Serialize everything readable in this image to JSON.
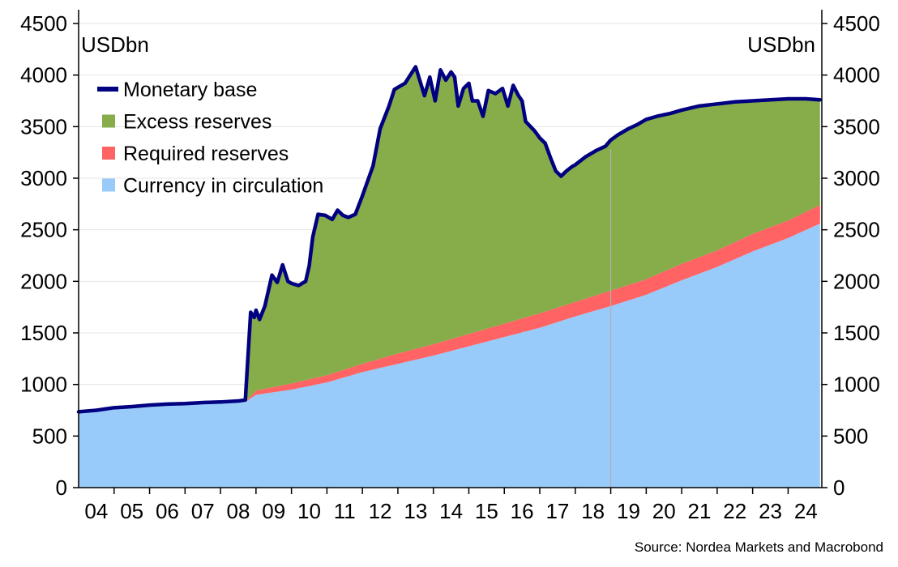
{
  "source": "Source: Nordea Markets and Macrobond",
  "chart_data": {
    "type": "area",
    "left_unit": "USDbn",
    "right_unit": "USDbn",
    "ylim": [
      0,
      4500
    ],
    "yticks": [
      0,
      500,
      1000,
      1500,
      2000,
      2500,
      3000,
      3500,
      4000,
      4500
    ],
    "xlim": [
      2004,
      2024.95
    ],
    "xtick_labels": [
      "04",
      "05",
      "06",
      "07",
      "08",
      "09",
      "10",
      "11",
      "12",
      "13",
      "14",
      "15",
      "16",
      "17",
      "18",
      "19",
      "20",
      "21",
      "22",
      "23",
      "24"
    ],
    "vertical_marker_x": 2019.0,
    "grid": true,
    "legend_position": "top-left",
    "legend": [
      {
        "name": "Monetary base",
        "color": "#000080",
        "kind": "line"
      },
      {
        "name": "Excess reserves",
        "color": "#86ad4a",
        "kind": "area"
      },
      {
        "name": "Required reserves",
        "color": "#ff6363",
        "kind": "area"
      },
      {
        "name": "Currency in circulation",
        "color": "#99cbfa",
        "kind": "area"
      }
    ],
    "series": [
      {
        "name": "Currency in circulation",
        "color": "#99cbfa",
        "x": [
          2004.0,
          2005.0,
          2006.0,
          2007.0,
          2008.0,
          2008.7,
          2009.0,
          2010.0,
          2011.0,
          2012.0,
          2013.0,
          2014.0,
          2015.0,
          2016.0,
          2017.0,
          2018.0,
          2019.0,
          2020.0,
          2021.0,
          2022.0,
          2023.0,
          2024.0,
          2024.9
        ],
        "values": [
          720,
          770,
          790,
          810,
          820,
          830,
          900,
          950,
          1020,
          1120,
          1200,
          1280,
          1370,
          1460,
          1550,
          1660,
          1760,
          1870,
          2010,
          2140,
          2290,
          2420,
          2560
        ]
      },
      {
        "name": "Required reserves",
        "color": "#ff6363",
        "x": [
          2004.0,
          2008.7,
          2009.0,
          2010.0,
          2011.0,
          2012.0,
          2013.0,
          2014.0,
          2015.0,
          2016.0,
          2017.0,
          2018.0,
          2019.0,
          2020.0,
          2021.0,
          2022.0,
          2023.0,
          2024.0,
          2024.9
        ],
        "values": [
          0,
          0,
          40,
          60,
          70,
          80,
          100,
          110,
          120,
          130,
          140,
          140,
          150,
          150,
          160,
          160,
          170,
          170,
          180
        ]
      },
      {
        "name": "Monetary base",
        "color": "#000080",
        "x": [
          2004.0,
          2004.5,
          2005.0,
          2005.5,
          2006.0,
          2006.5,
          2007.0,
          2007.5,
          2008.0,
          2008.5,
          2008.7,
          2008.85,
          2008.95,
          2009.0,
          2009.1,
          2009.25,
          2009.45,
          2009.6,
          2009.75,
          2009.9,
          2010.0,
          2010.2,
          2010.4,
          2010.5,
          2010.6,
          2010.75,
          2010.95,
          2011.15,
          2011.3,
          2011.45,
          2011.6,
          2011.8,
          2012.0,
          2012.3,
          2012.5,
          2012.75,
          2012.9,
          2013.2,
          2013.5,
          2013.75,
          2013.9,
          2014.05,
          2014.2,
          2014.35,
          2014.5,
          2014.6,
          2014.7,
          2014.85,
          2015.0,
          2015.1,
          2015.25,
          2015.4,
          2015.55,
          2015.75,
          2015.95,
          2016.1,
          2016.25,
          2016.4,
          2016.5,
          2016.6,
          2016.85,
          2017.0,
          2017.15,
          2017.3,
          2017.45,
          2017.6,
          2017.75,
          2017.9,
          2018.0,
          2018.3,
          2018.6,
          2018.85,
          2019.0,
          2019.2,
          2019.5,
          2019.75,
          2019.9,
          2020.0,
          2020.3,
          2020.7,
          2021.0,
          2021.5,
          2022.0,
          2022.5,
          2023.0,
          2023.5,
          2024.0,
          2024.5,
          2024.9
        ],
        "values": [
          735,
          750,
          775,
          785,
          800,
          810,
          815,
          825,
          830,
          840,
          850,
          1700,
          1650,
          1720,
          1630,
          1760,
          2060,
          1990,
          2160,
          2000,
          1980,
          1960,
          2000,
          2150,
          2430,
          2650,
          2640,
          2600,
          2690,
          2640,
          2620,
          2650,
          2830,
          3120,
          3480,
          3700,
          3860,
          3920,
          4080,
          3800,
          3980,
          3750,
          4050,
          3950,
          4030,
          3980,
          3700,
          3870,
          3920,
          3750,
          3750,
          3600,
          3850,
          3820,
          3870,
          3700,
          3900,
          3800,
          3750,
          3550,
          3460,
          3390,
          3340,
          3200,
          3070,
          3020,
          3070,
          3110,
          3130,
          3210,
          3270,
          3310,
          3370,
          3420,
          3480,
          3520,
          3550,
          3570,
          3600,
          3630,
          3660,
          3700,
          3720,
          3740,
          3750,
          3760,
          3770,
          3770,
          3760
        ]
      }
    ]
  }
}
